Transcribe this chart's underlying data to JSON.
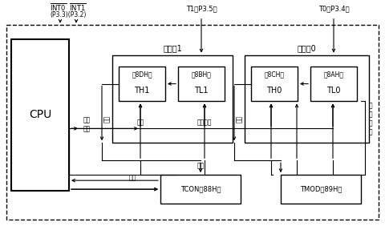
{
  "bg_color": "#ffffff",
  "timer1_label": "定时器1",
  "timer0_label": "定时器0",
  "cpu_label": "CPU",
  "th1_label": "TH1",
  "tl1_label": "TL1",
  "th0_label": "TH0",
  "tl0_label": "TL0",
  "tcon_label": "TCON（88H）",
  "tmod_label": "TMOD（89H）",
  "th1_addr": "（8DH）",
  "tl1_addr": "（8BH）",
  "th0_addr": "（8CH）",
  "tl0_addr": "（8AH）",
  "into_line1": "INT0  INT1",
  "into_line2": "(P3.3)(P3.2)",
  "t1_label": "T1（P3.5）",
  "t0_label": "T0（P3.4）",
  "neibuzongxian": "内部\n总线",
  "yichu": "溢出",
  "qidong": "启动",
  "gongzuofangshi_h": "工作方式",
  "gongzuofangshi_v": "工\n作\n方\n式",
  "qidong_tcon": "启动",
  "zhongduan": "中断"
}
